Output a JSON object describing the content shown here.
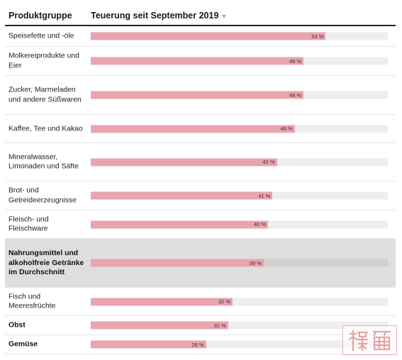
{
  "header": {
    "col_left": "Produktgruppe",
    "col_right": "Teuerung seit September 2019"
  },
  "chart_data": {
    "type": "bar",
    "orientation": "horizontal",
    "xlim": [
      0,
      67
    ],
    "unit": "%",
    "rows": [
      {
        "label": "Speisefette und -öle",
        "value": 53,
        "value_label": "53 %",
        "bold": false,
        "highlight": false
      },
      {
        "label": "Molkereiprodukte und Eier",
        "value": 48,
        "value_label": "48 %",
        "bold": false,
        "highlight": false
      },
      {
        "label": "Zucker, Marmeladen und andere Süßwaren",
        "value": 48,
        "value_label": "48 %",
        "bold": false,
        "highlight": false
      },
      {
        "label": "Kaffee, Tee und Kakao",
        "value": 46,
        "value_label": "46 %",
        "bold": false,
        "highlight": false
      },
      {
        "label": "Mineralwasser, Limonaden und Säfte",
        "value": 42,
        "value_label": "42 %",
        "bold": false,
        "highlight": false
      },
      {
        "label": "Brot- und Getreideerzeugnisse",
        "value": 41,
        "value_label": "41 %",
        "bold": false,
        "highlight": false
      },
      {
        "label": "Fleisch- und Fleischware",
        "value": 40,
        "value_label": "40 %",
        "bold": false,
        "highlight": false
      },
      {
        "label": "Nahrungsmittel und alkoholfreie Getränke im Durchschnitt",
        "value": 39,
        "value_label": "39 %",
        "bold": true,
        "highlight": true
      },
      {
        "label": "Fisch und Meeresfrüchte",
        "value": 32,
        "value_label": "32 %",
        "bold": false,
        "highlight": false
      },
      {
        "label": "Obst",
        "value": 31,
        "value_label": "31 %",
        "bold": true,
        "highlight": false
      },
      {
        "label": "Gemüse",
        "value": 26,
        "value_label": "26 %",
        "bold": true,
        "highlight": false
      }
    ]
  },
  "colors": {
    "bar": "#e9a4ae",
    "track": "#eeeeee",
    "highlight_row": "#dedede",
    "highlight_track": "#cfcfcf",
    "watermark": "#e7a3a3"
  },
  "icons": {
    "sort": "sort-descending-icon",
    "watermark": "seal-stamp-icon"
  },
  "watermark": {
    "text": "楼篇"
  }
}
